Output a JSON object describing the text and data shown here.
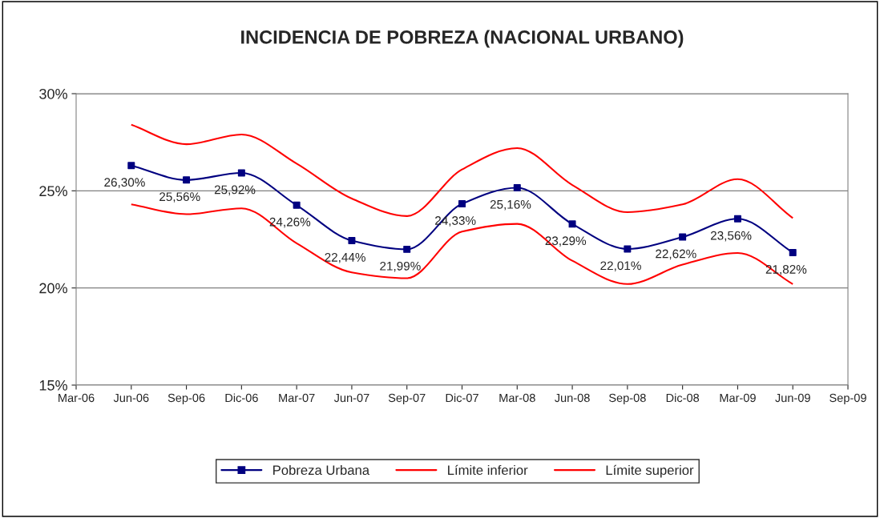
{
  "chart_data": {
    "type": "line",
    "title": "INCIDENCIA DE POBREZA (NACIONAL URBANO)",
    "x": [
      "2006-06",
      "2006-09",
      "2006-12",
      "2007-03",
      "2007-06",
      "2007-09",
      "2007-12",
      "2008-03",
      "2008-06",
      "2008-09",
      "2008-12",
      "2009-03",
      "2009-06"
    ],
    "series": [
      {
        "name": "Pobreza Urbana",
        "color": "#000080",
        "marker": "square",
        "values": [
          26.3,
          25.56,
          25.92,
          24.26,
          22.44,
          21.99,
          24.33,
          25.16,
          23.29,
          22.01,
          22.62,
          23.56,
          21.82
        ],
        "value_labels": [
          "26,30%",
          "25,56%",
          "25,92%",
          "24,26%",
          "22,44%",
          "21,99%",
          "24,33%",
          "25,16%",
          "23,29%",
          "22,01%",
          "22,62%",
          "23,56%",
          "21,82%"
        ]
      },
      {
        "name": "Límite inferior",
        "color": "#ff0000",
        "marker": "none",
        "values": [
          24.3,
          23.8,
          24.1,
          22.3,
          20.8,
          20.5,
          22.9,
          23.3,
          21.4,
          20.2,
          21.2,
          21.8,
          20.2
        ]
      },
      {
        "name": "Límite superior",
        "color": "#ff0000",
        "marker": "none",
        "values": [
          28.4,
          27.4,
          27.9,
          26.4,
          24.6,
          23.7,
          26.1,
          27.2,
          25.3,
          23.9,
          24.3,
          25.6,
          23.6
        ]
      }
    ],
    "xlim": [
      "2006-03",
      "2009-09"
    ],
    "xticks": [
      {
        "value": "2006-03",
        "label": "Mar-06"
      },
      {
        "value": "2006-06",
        "label": "Jun-06"
      },
      {
        "value": "2006-09",
        "label": "Sep-06"
      },
      {
        "value": "2006-12",
        "label": "Dic-06"
      },
      {
        "value": "2007-03",
        "label": "Mar-07"
      },
      {
        "value": "2007-06",
        "label": "Jun-07"
      },
      {
        "value": "2007-09",
        "label": "Sep-07"
      },
      {
        "value": "2007-12",
        "label": "Dic-07"
      },
      {
        "value": "2008-03",
        "label": "Mar-08"
      },
      {
        "value": "2008-06",
        "label": "Jun-08"
      },
      {
        "value": "2008-09",
        "label": "Sep-08"
      },
      {
        "value": "2008-12",
        "label": "Dic-08"
      },
      {
        "value": "2009-03",
        "label": "Mar-09"
      },
      {
        "value": "2009-06",
        "label": "Jun-09"
      },
      {
        "value": "2009-09",
        "label": "Sep-09"
      }
    ],
    "ylim": [
      15,
      30
    ],
    "yticks": [
      {
        "value": 15,
        "label": "15%"
      },
      {
        "value": 20,
        "label": "20%"
      },
      {
        "value": 25,
        "label": "25%"
      },
      {
        "value": 30,
        "label": "30%"
      }
    ],
    "grid": "y",
    "legend": "bottom"
  }
}
